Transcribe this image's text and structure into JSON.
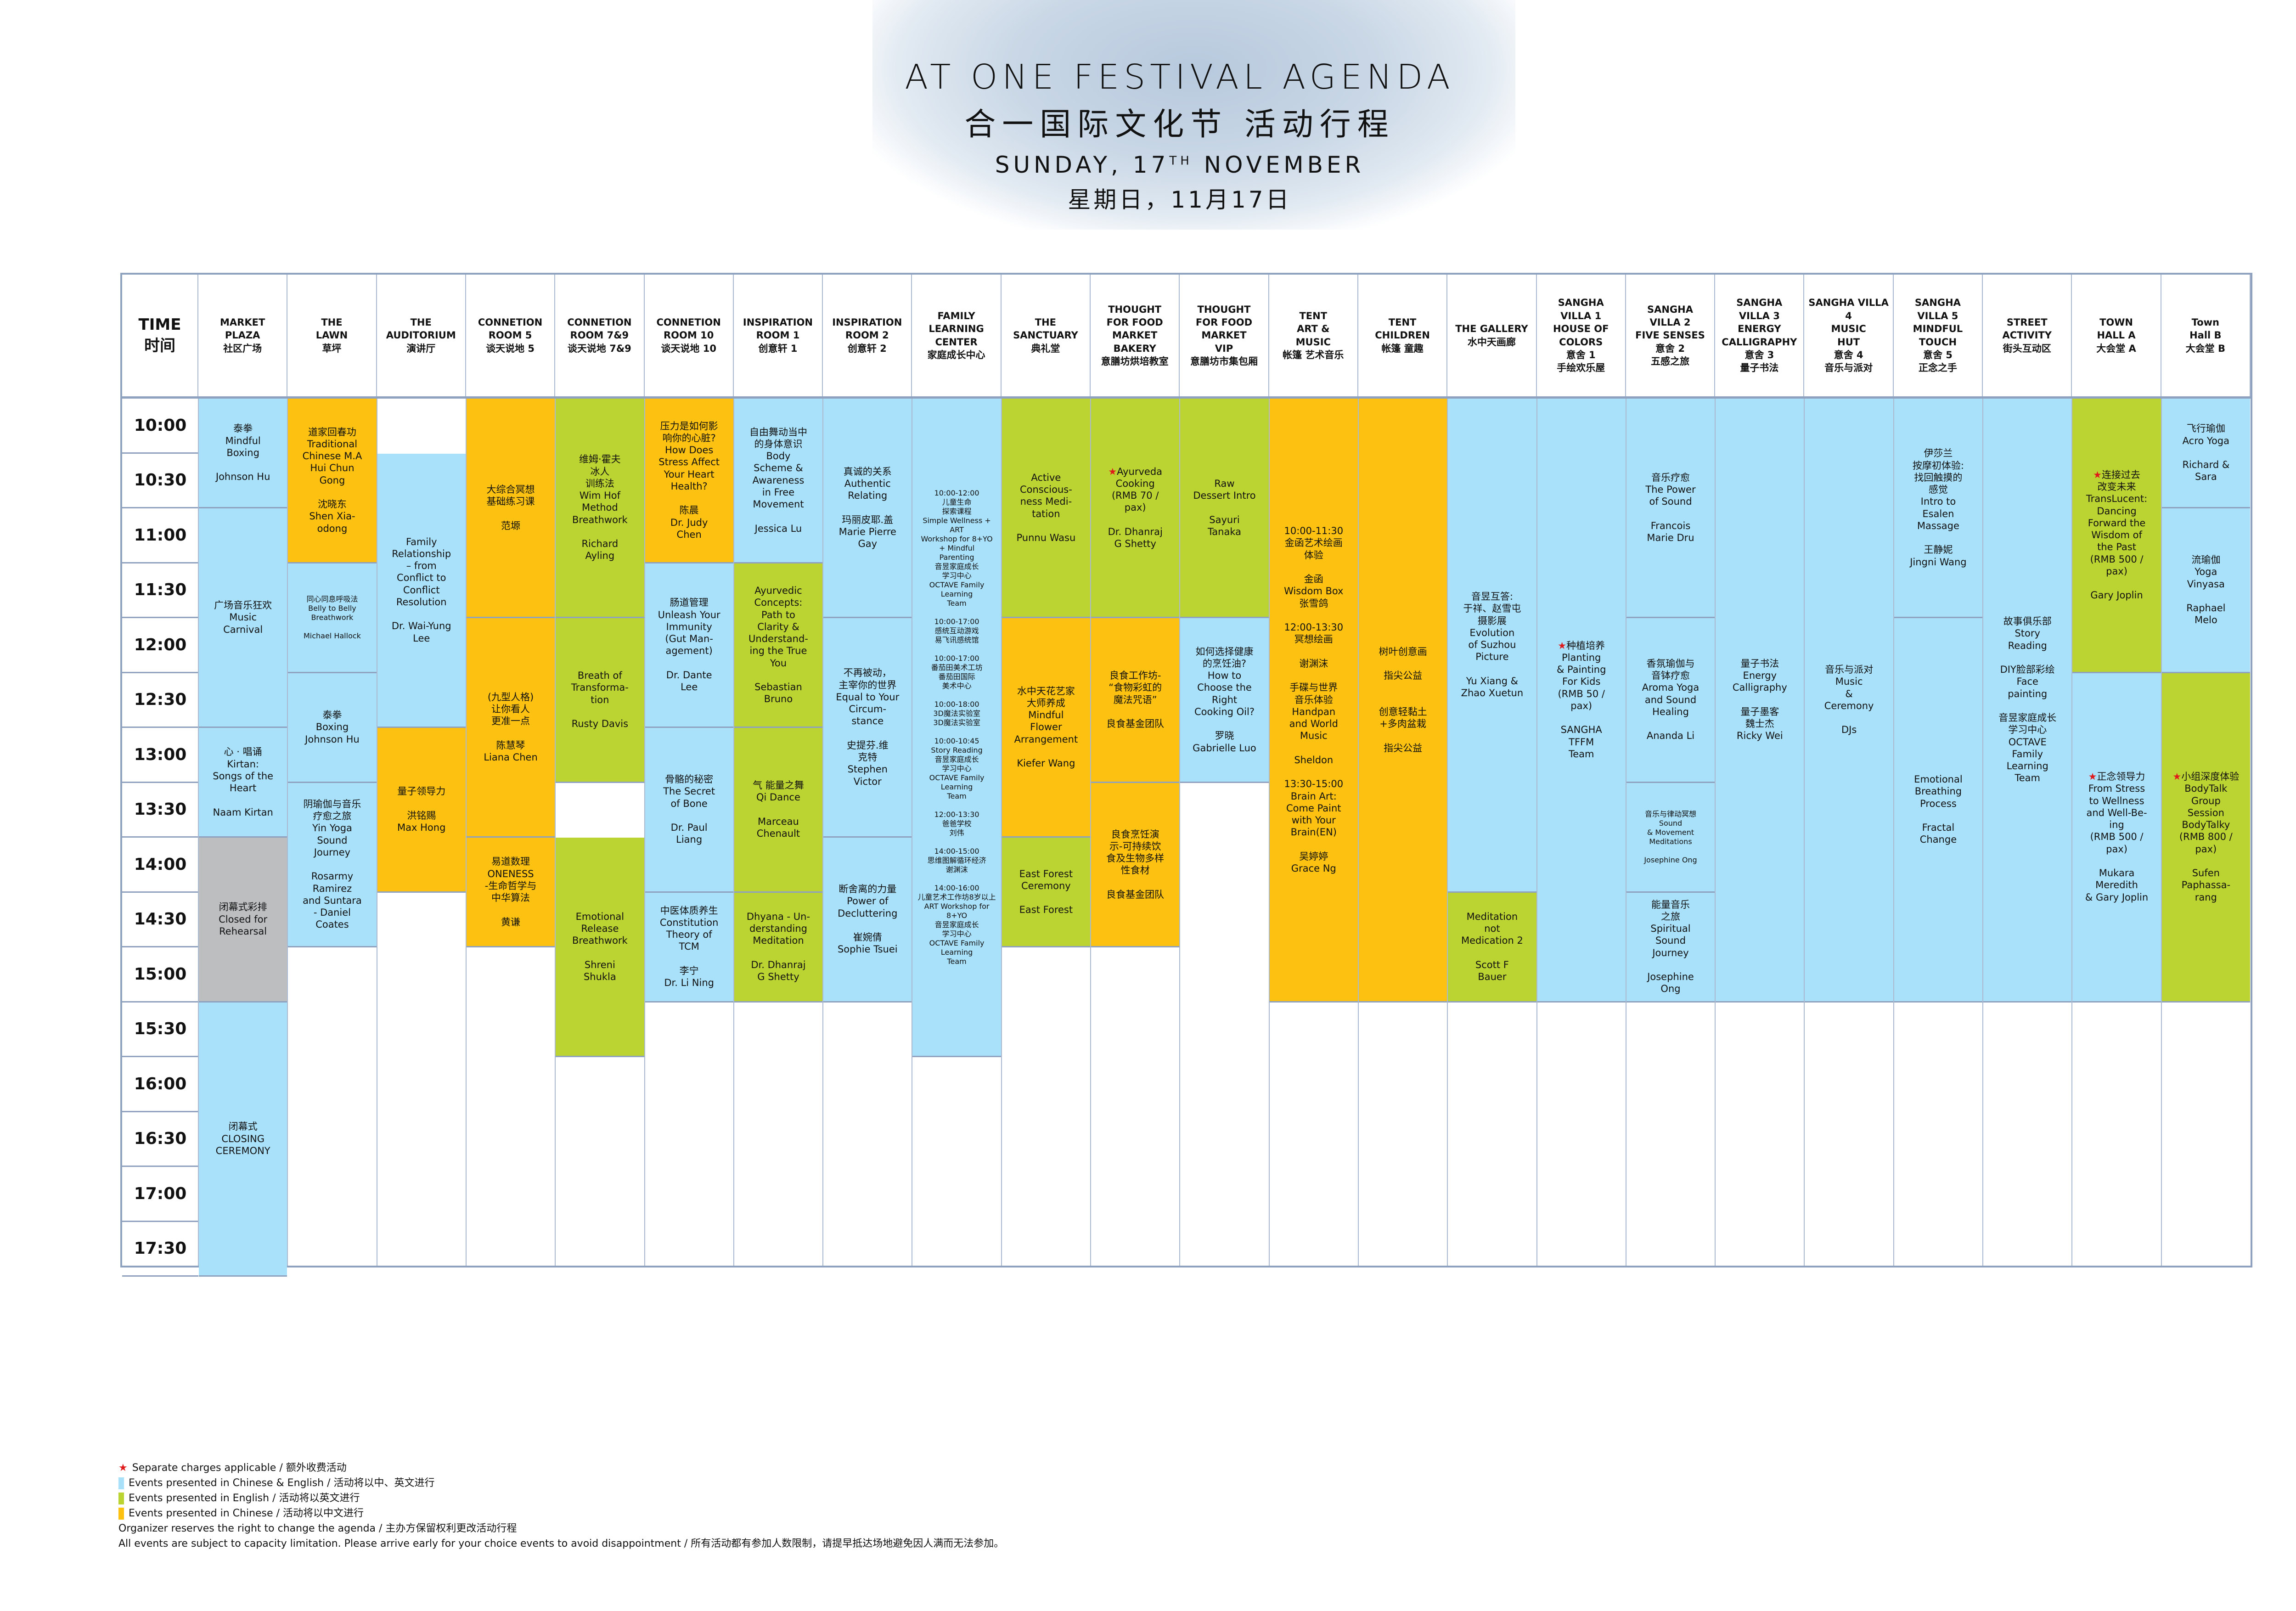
{
  "header": {
    "title_en": "AT ONE FESTIVAL AGENDA",
    "title_cn": "合一国际文化节 活动行程",
    "date_en_main": "SUNDAY, 17",
    "date_en_sup": "TH",
    "date_en_month": " NOVEMBER",
    "date_cn": "星期日，11月17日"
  },
  "colors": {
    "blue": "#a9e0fa",
    "green": "#bbd431",
    "orange": "#fdc112",
    "grey": "#bcbec0",
    "star": "#e01a1a",
    "grid_line": "#8ea2bf"
  },
  "time_header": "TIME\n时间",
  "times": [
    "10:00",
    "10:30",
    "11:00",
    "11:30",
    "12:00",
    "12:30",
    "13:00",
    "13:30",
    "14:00",
    "14:30",
    "15:00",
    "15:30",
    "16:00",
    "16:30",
    "17:00",
    "17:30"
  ],
  "venues": [
    {
      "name": "MARKET\nPLAZA\n社区广场",
      "events": [
        {
          "start": 0,
          "span": 2,
          "color": "blue",
          "text": "泰拳\nMindful\nBoxing\n\nJohnson Hu"
        },
        {
          "start": 2,
          "span": 4,
          "color": "blue",
          "text": "广场音乐狂欢\nMusic\nCarnival"
        },
        {
          "start": 6,
          "span": 2,
          "color": "blue",
          "text": "心 · 唱诵\nKirtan:\nSongs of the\nHeart\n\nNaam Kirtan"
        },
        {
          "start": 8,
          "span": 3,
          "color": "grey",
          "text": "闭幕式彩排\nClosed for\nRehearsal"
        },
        {
          "start": 11,
          "span": 5,
          "color": "blue",
          "text": "闭幕式\nCLOSING\nCEREMONY"
        }
      ]
    },
    {
      "name": "THE\nLAWN\n草坪",
      "events": [
        {
          "start": 0,
          "span": 3,
          "color": "orange",
          "text": "道家回春功\nTraditional\nChinese M.A\nHui Chun\nGong\n\n沈晓东\nShen Xia-\nodong"
        },
        {
          "start": 3,
          "span": 2,
          "color": "blue",
          "small": true,
          "text": "同心同息呼吸法\nBelly to Belly\nBreathwork\n\nMichael Hallock"
        },
        {
          "start": 5,
          "span": 2,
          "color": "blue",
          "text": "泰拳\nBoxing\nJohnson Hu"
        },
        {
          "start": 7,
          "span": 3,
          "color": "blue",
          "text": "阴瑜伽与音乐\n疗愈之旅\nYin Yoga\nSound\nJourney\n\nRosarmy\nRamirez\nand Suntara\n- Daniel\nCoates"
        }
      ]
    },
    {
      "name": "THE\nAUDITORIUM\n演讲厅",
      "events": [
        {
          "start": 1,
          "span": 5,
          "color": "blue",
          "text": "Family\nRelationship\n– from\nConflict to\nConflict\nResolution\n\nDr. Wai-Yung\nLee"
        },
        {
          "start": 6,
          "span": 3,
          "color": "orange",
          "text": "量子领导力\n\n洪铭赐\nMax Hong"
        }
      ]
    },
    {
      "name": "CONNETION\nROOM 5\n谈天说地 5",
      "events": [
        {
          "start": 0,
          "span": 4,
          "color": "orange",
          "text": "大综合冥想\n基础练习课\n\n范塬"
        },
        {
          "start": 4,
          "span": 4,
          "color": "orange",
          "text": "(九型人格)\n让你看人\n更准一点\n\n陈慧琴\nLiana Chen"
        },
        {
          "start": 8,
          "span": 2,
          "color": "orange",
          "text": "易道数理\nONENESS\n-生命哲学与\n中华算法\n\n黄谦"
        }
      ]
    },
    {
      "name": "CONNETION\nROOM 7&9\n谈天说地 7&9",
      "events": [
        {
          "start": 0,
          "span": 4,
          "color": "green",
          "text": "维姆·霍夫\n冰人\n训练法\nWim Hof\nMethod\nBreathwork\n\nRichard\nAyling"
        },
        {
          "start": 4,
          "span": 3,
          "color": "green",
          "text": "Breath of\nTransforma-\ntion\n\nRusty Davis"
        },
        {
          "start": 8,
          "span": 4,
          "color": "green",
          "text": "Emotional\nRelease\nBreathwork\n\nShreni\nShukla"
        }
      ]
    },
    {
      "name": "CONNETION\nROOM 10\n谈天说地 10",
      "events": [
        {
          "start": 0,
          "span": 3,
          "color": "orange",
          "text": "压力是如何影\n响你的心脏?\nHow Does\nStress Affect\nYour Heart\nHealth?\n\n陈晨\nDr. Judy\nChen"
        },
        {
          "start": 3,
          "span": 3,
          "color": "blue",
          "text": "肠道管理\nUnleash Your\nImmunity\n(Gut Man-\nagement)\n\nDr. Dante\nLee"
        },
        {
          "start": 6,
          "span": 3,
          "color": "blue",
          "text": "骨骼的秘密\nThe Secret\nof Bone\n\nDr. Paul\nLiang"
        },
        {
          "start": 9,
          "span": 2,
          "color": "blue",
          "text": "中医体质养生\nConstitution\nTheory of\nTCM\n\n李宁\nDr. Li Ning"
        }
      ]
    },
    {
      "name": "INSPIRATION\nROOM 1\n创意轩 1",
      "events": [
        {
          "start": 0,
          "span": 3,
          "color": "blue",
          "text": "自由舞动当中\n的身体意识\nBody\nScheme &\nAwareness\nin Free\nMovement\n\nJessica Lu"
        },
        {
          "start": 3,
          "span": 3,
          "color": "green",
          "text": "Ayurvedic\nConcepts:\nPath to\nClarity &\nUnderstand-\ning the True\nYou\n\nSebastian\nBruno"
        },
        {
          "start": 6,
          "span": 3,
          "color": "green",
          "text": "气 能量之舞\nQi Dance\n\nMarceau\nChenault"
        },
        {
          "start": 9,
          "span": 2,
          "color": "green",
          "text": "Dhyana - Un-\nderstanding\nMeditation\n\nDr. Dhanraj\nG Shetty"
        }
      ]
    },
    {
      "name": "INSPIRATION\nROOM 2\n创意轩 2",
      "events": [
        {
          "start": 0,
          "span": 4,
          "color": "blue",
          "text": "真诚的关系\nAuthentic\nRelating\n\n玛丽皮耶.盖\nMarie Pierre\nGay"
        },
        {
          "start": 4,
          "span": 4,
          "color": "blue",
          "text": "不再被动，\n主宰你的世界\nEqual to Your\nCircum-\nstance\n\n史提芬.维\n克特\nStephen\nVictor"
        },
        {
          "start": 8,
          "span": 3,
          "color": "blue",
          "text": "断舍离的力量\nPower of\nDecluttering\n\n崔婉倩\nSophie Tsuei"
        }
      ]
    },
    {
      "name": "FAMILY\nLEARNING CENTER\n家庭成长中心",
      "events": [
        {
          "start": 0,
          "span": 12,
          "color": "blue",
          "small": true,
          "text": "10:00-12:00\n儿童生命\n探索课程\nSimple Wellness + ART\nWorkshop for 8+YO\n+ Mindful\nParenting\n音昱家庭成长\n学习中心\nOCTAVE Family Learning\nTeam\n\n10:00-17:00\n感统互动游戏\n易飞讯感统馆\n\n10:00-17:00\n番茄田美术工坊\n番茄田国际\n美术中心\n\n10:00-18:00\n3D魔法实验室\n3D魔法实验室\n\n10:00-10:45\nStory Reading\n音昱家庭成长\n学习中心\nOCTAVE Family Learning\nTeam\n\n12:00-13:30\n爸爸学校\n刘伟\n\n14:00-15:00\n思维图解循环经济\n谢渊沫\n\n14:00-16:00\n儿童艺术工作坊8岁以上\nART Workshop for 8+YO\n音昱家庭成长\n学习中心\nOCTAVE Family Learning\nTeam"
        }
      ]
    },
    {
      "name": "THE\nSANCTUARY\n典礼堂",
      "events": [
        {
          "start": 0,
          "span": 4,
          "color": "green",
          "text": "Active\nConscious-\nness Medi-\ntation\n\nPunnu Wasu"
        },
        {
          "start": 4,
          "span": 4,
          "color": "orange",
          "text": "水中天花艺家\n大师养成\nMindful\nFlower\nArrangement\n\nKiefer Wang"
        },
        {
          "start": 8,
          "span": 2,
          "color": "green",
          "text": "East Forest\nCeremony\n\nEast Forest"
        }
      ]
    },
    {
      "name": "THOUGHT\nFOR FOOD\nMARKET\nBAKERY\n意膳坊烘培教室",
      "events": [
        {
          "start": 0,
          "span": 4,
          "color": "green",
          "star": true,
          "text": "Ayurveda\nCooking\n(RMB 70 /\npax)\n\nDr. Dhanraj\nG Shetty"
        },
        {
          "start": 4,
          "span": 3,
          "color": "orange",
          "text": "良食工作坊-\n“食物彩虹的\n魔法咒语”\n\n良食基金团队"
        },
        {
          "start": 7,
          "span": 3,
          "color": "orange",
          "text": "良食烹饪演\n示-可持续饮\n食及生物多样\n性食材\n\n良食基金团队"
        }
      ]
    },
    {
      "name": "THOUGHT\nFOR FOOD\nMARKET\nVIP\n意膳坊市集包厢",
      "events": [
        {
          "start": 0,
          "span": 4,
          "color": "green",
          "text": "Raw\nDessert Intro\n\nSayuri\nTanaka"
        },
        {
          "start": 4,
          "span": 3,
          "color": "blue",
          "text": "如何选择健康\n的烹饪油?\nHow to\nChoose the\nRight\nCooking Oil?\n\n罗晓\nGabrielle Luo"
        }
      ]
    },
    {
      "name": "TENT\nART &\nMUSIC\n帐篷 艺术音乐",
      "events": [
        {
          "start": 0,
          "span": 11,
          "color": "orange",
          "text": "10:00-11:30\n金函艺术绘画\n体验\n\n金函\nWisdom Box\n张雪鸽\n\n12:00-13:30\n冥想绘画\n\n谢渊沫\n\n手碟与世界\n音乐体验\nHandpan\nand World\nMusic\n\nSheldon\n\n13:30-15:00\nBrain Art:\nCome Paint\nwith Your\nBrain(EN)\n\n吴婷婷\nGrace Ng"
        }
      ]
    },
    {
      "name": "TENT\nCHILDREN\n帐篷 童趣",
      "events": [
        {
          "start": 0,
          "span": 11,
          "color": "orange",
          "text": "树叶创意画\n\n指尖公益\n\n\n创意轻黏土\n+多肉盆栽\n\n指尖公益"
        }
      ]
    },
    {
      "name": "THE GALLERY\n水中天画廊",
      "events": [
        {
          "start": 0,
          "span": 9,
          "color": "blue",
          "text": "音昱互答:\n于祥、赵雪屯\n摄影展\nEvolution\nof Suzhou\nPicture\n\nYu Xiang &\nZhao Xuetun"
        },
        {
          "start": 9,
          "span": 2,
          "color": "green",
          "text": "Meditation\nnot\nMedication 2\n\nScott F\nBauer"
        }
      ]
    },
    {
      "name": "SANGHA\nVILLA 1\nHOUSE OF\nCOLORS\n意舍 1\n手绘欢乐屋",
      "events": [
        {
          "start": 0,
          "span": 11,
          "color": "blue",
          "star": true,
          "text": "种植培养\nPlanting\n& Painting\nFor Kids\n(RMB 50 /\npax)\n\nSANGHA\nTFFM\nTeam"
        }
      ]
    },
    {
      "name": "SANGHA\nVILLA 2\nFIVE SENSES\n意舍 2\n五感之旅",
      "events": [
        {
          "start": 0,
          "span": 4,
          "color": "blue",
          "text": "音乐疗愈\nThe Power\nof Sound\n\nFrancois\nMarie Dru"
        },
        {
          "start": 4,
          "span": 3,
          "color": "blue",
          "text": "香氛瑜伽与\n音钵疗愈\nAroma Yoga\nand Sound\nHealing\n\nAnanda Li"
        },
        {
          "start": 7,
          "span": 2,
          "color": "blue",
          "small": true,
          "text": "音乐与律动冥想\nSound\n& Movement\nMeditations\n\nJosephine Ong"
        },
        {
          "start": 9,
          "span": 2,
          "color": "blue",
          "text": "能量音乐\n之旅\nSpiritual\nSound\nJourney\n\nJosephine\nOng"
        }
      ]
    },
    {
      "name": "SANGHA\nVILLA 3\nENERGY\nCALLIGRAPHY\n意舍 3\n量子书法",
      "events": [
        {
          "start": 0,
          "span": 11,
          "color": "blue",
          "text": "量子书法\nEnergy\nCalligraphy\n\n量子墨客\n魏士杰\nRicky Wei"
        }
      ]
    },
    {
      "name": "SANGHA VILLA 4\nMUSIC\nHUT\n意舍 4\n音乐与派对",
      "events": [
        {
          "start": 0,
          "span": 11,
          "color": "blue",
          "text": "音乐与派对\nMusic\n&\nCeremony\n\nDJs"
        }
      ]
    },
    {
      "name": "SANGHA\nVILLA 5\nMINDFUL\nTOUCH\n意舍 5\n正念之手",
      "events": [
        {
          "start": 0,
          "span": 4,
          "color": "blue",
          "text": "伊莎兰\n按摩初体验:\n找回触摸的\n感觉\nIntro to\nEsalen\nMassage\n\n王静妮\nJingni Wang"
        },
        {
          "start": 4,
          "span": 7,
          "color": "blue",
          "text": "Emotional\nBreathing\nProcess\n\nFractal\nChange"
        }
      ]
    },
    {
      "name": "STREET\nACTIVITY\n街头互动区",
      "events": [
        {
          "start": 0,
          "span": 11,
          "color": "blue",
          "text": "故事俱乐部\nStory\nReading\n\nDIY脸部彩绘\nFace\npainting\n\n音昱家庭成长\n学习中心\nOCTAVE\nFamily\nLearning\nTeam"
        }
      ]
    },
    {
      "name": "TOWN\nHALL A\n大会堂 A",
      "events": [
        {
          "start": 0,
          "span": 5,
          "color": "green",
          "star": true,
          "text": "连接过去\n改变未来\nTransLucent:\nDancing\nForward the\nWisdom of\nthe Past\n(RMB 500 /\npax)\n\nGary Joplin"
        },
        {
          "start": 5,
          "span": 6,
          "color": "blue",
          "star": true,
          "text": "正念领导力\nFrom Stress\nto Wellness\nand Well-Be-\ning\n(RMB 500 /\npax)\n\nMukara\nMeredith\n& Gary Joplin"
        }
      ]
    },
    {
      "name": "Town\nHall B\n大会堂 B",
      "events": [
        {
          "start": 0,
          "span": 2,
          "color": "blue",
          "text": "飞行瑜伽\nAcro Yoga\n\nRichard &\nSara"
        },
        {
          "start": 2,
          "span": 3,
          "color": "blue",
          "text": "流瑜伽\nYoga\nVinyasa\n\nRaphael\nMelo"
        },
        {
          "start": 5,
          "span": 6,
          "color": "green",
          "star": true,
          "text": "小组深度体验\nBodyTalk\nGroup\nSession\nBodyTalky\n(RMB 800 /\npax)\n\nSufen\nPaphassa-\nrang"
        }
      ]
    }
  ],
  "legend": {
    "star": "Separate charges applicable  /  额外收费活动",
    "blue": "Events presented in Chinese & English  /  活动将以中、英文进行",
    "green": "Events presented in English  /  活动将以英文进行",
    "orange": "Events presented in Chinese  /  活动将以中文进行",
    "note1": "Organizer reserves the right to change the agenda  /  主办方保留权利更改活动行程",
    "note2": "All events are subject to capacity limitation.  Please arrive early for your choice events to avoid disappointment  /  所有活动都有参加人数限制，请提早抵达场地避免因人满而无法参加。"
  }
}
